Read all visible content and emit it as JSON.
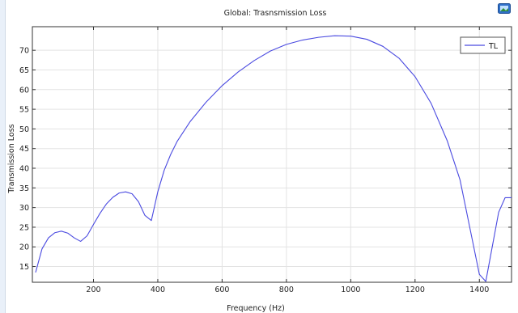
{
  "chart_data": {
    "type": "line",
    "title": "Global: Trasnsmission Loss",
    "xlabel": "Frequency (Hz)",
    "ylabel": "Transmission Loss",
    "xlim": [
      10,
      1500
    ],
    "ylim": [
      11,
      76
    ],
    "x_ticks": [
      200,
      400,
      600,
      800,
      1000,
      1200,
      1400
    ],
    "y_ticks": [
      15,
      20,
      25,
      30,
      35,
      40,
      45,
      50,
      55,
      60,
      65,
      70
    ],
    "grid": true,
    "legend_position": "top-right",
    "series": [
      {
        "name": "TL",
        "color": "#4a4ae0",
        "x": [
          20,
          40,
          60,
          80,
          100,
          120,
          140,
          160,
          180,
          200,
          220,
          240,
          260,
          280,
          300,
          320,
          340,
          360,
          380,
          400,
          420,
          440,
          460,
          500,
          550,
          600,
          650,
          700,
          750,
          800,
          850,
          900,
          950,
          1000,
          1050,
          1100,
          1150,
          1200,
          1250,
          1300,
          1340,
          1370,
          1400,
          1420,
          1440,
          1460,
          1480,
          1500
        ],
        "y": [
          13.5,
          19.5,
          22.3,
          23.6,
          24.0,
          23.5,
          22.3,
          21.4,
          22.8,
          25.7,
          28.5,
          30.9,
          32.6,
          33.7,
          34.0,
          33.5,
          31.5,
          28.0,
          26.7,
          34.0,
          39.5,
          43.5,
          46.8,
          51.8,
          56.8,
          61.0,
          64.5,
          67.4,
          69.8,
          71.5,
          72.6,
          73.3,
          73.7,
          73.6,
          72.8,
          71.0,
          68.0,
          63.3,
          56.5,
          47.0,
          37.0,
          25.0,
          13.0,
          11.2,
          20.0,
          28.8,
          32.5,
          32.5
        ]
      }
    ]
  },
  "toolbar": {
    "export_icon": "image-export-icon"
  }
}
